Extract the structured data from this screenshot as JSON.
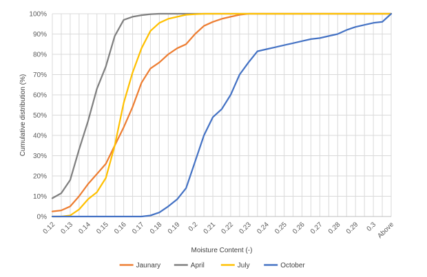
{
  "chart_data": {
    "type": "line",
    "title": "",
    "xlabel": "Moisture Content (-)",
    "ylabel": "Cumulative distribution (%)",
    "ylim": [
      0,
      100
    ],
    "y_ticks": [
      "0%",
      "10%",
      "20%",
      "30%",
      "40%",
      "50%",
      "60%",
      "70%",
      "80%",
      "90%",
      "100%"
    ],
    "x_tick_labels": [
      "0.12",
      "0.13",
      "0.14",
      "0.15",
      "0.16",
      "0.17",
      "0.18",
      "0.19",
      "0.2",
      "0.21",
      "0.22",
      "0.23",
      "0.24",
      "0.25",
      "0.26",
      "0.27",
      "0.28",
      "0.29",
      "0.3",
      "Above"
    ],
    "x": [
      0.12,
      0.125,
      0.13,
      0.135,
      0.14,
      0.145,
      0.15,
      0.155,
      0.16,
      0.165,
      0.17,
      0.175,
      0.18,
      0.185,
      0.19,
      0.195,
      0.2,
      0.205,
      0.21,
      0.215,
      0.22,
      0.225,
      0.23,
      0.235,
      0.24,
      0.245,
      0.25,
      0.255,
      0.26,
      0.265,
      0.27,
      0.275,
      0.28,
      0.285,
      0.29,
      0.295,
      0.3,
      0.305,
      "Above"
    ],
    "grid": true,
    "legend_position": "bottom",
    "series": [
      {
        "name": "Jaunary",
        "color": "#ED7D31",
        "values": [
          2.5,
          3,
          5,
          10,
          16,
          21,
          26,
          35,
          44,
          54,
          66,
          73,
          76,
          80,
          83,
          85,
          90,
          94,
          96,
          97.5,
          98.5,
          99.5,
          100,
          100,
          100,
          100,
          100,
          100,
          100,
          100,
          100,
          100,
          100,
          100,
          100,
          100,
          100,
          100,
          100
        ]
      },
      {
        "name": "April",
        "color": "#7F7F7F",
        "values": [
          9,
          11.5,
          18,
          33,
          47,
          63,
          74,
          89,
          97,
          98.5,
          99.3,
          99.8,
          100,
          100,
          100,
          100,
          100,
          100,
          100,
          100,
          100,
          100,
          100,
          100,
          100,
          100,
          100,
          100,
          100,
          100,
          100,
          100,
          100,
          100,
          100,
          100,
          100,
          100,
          100
        ]
      },
      {
        "name": "July",
        "color": "#FFC000",
        "values": [
          0,
          0,
          0.5,
          3.5,
          8.5,
          12,
          19,
          35,
          56,
          71,
          83,
          91.5,
          95.5,
          97.5,
          98.5,
          99.5,
          99.8,
          100,
          100,
          100,
          100,
          100,
          100,
          100,
          100,
          100,
          100,
          100,
          100,
          100,
          100,
          100,
          100,
          100,
          100,
          100,
          100,
          100,
          100
        ]
      },
      {
        "name": "October",
        "color": "#4472C4",
        "values": [
          0,
          0,
          0,
          0,
          0,
          0,
          0,
          0,
          0,
          0,
          0,
          0.5,
          2,
          5,
          8.5,
          14,
          27,
          40,
          49,
          53,
          60,
          70,
          76,
          81.5,
          82.5,
          83.5,
          84.5,
          85.5,
          86.5,
          87.5,
          88,
          89,
          90,
          92,
          93.5,
          94.5,
          95.5,
          96,
          100
        ]
      }
    ]
  }
}
